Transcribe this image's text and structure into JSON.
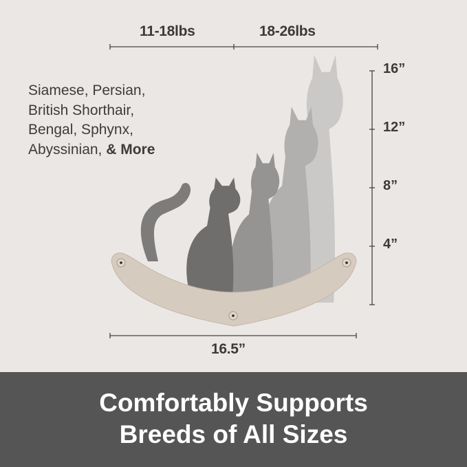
{
  "weight_ranges": [
    "11-18lbs",
    "18-26lbs"
  ],
  "height_marks": [
    "16”",
    "12”",
    "8”",
    "4”"
  ],
  "width_label": "16.5”",
  "breeds": {
    "lines": [
      "Siamese, Persian,",
      "British Shorthair,",
      "Bengal, Sphynx,",
      "Abyssinian,"
    ],
    "more": "& More"
  },
  "banner": {
    "line1": "Comfortably Supports",
    "line2": "Breeds of All Sizes"
  },
  "colors": {
    "background": "#ebe7e4",
    "banner": "#555555",
    "tray": "#d6cbbf"
  }
}
